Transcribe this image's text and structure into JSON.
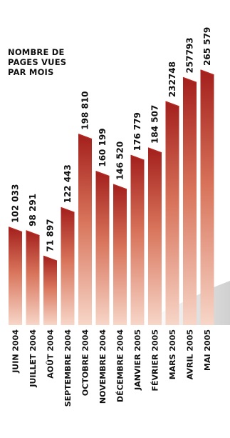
{
  "chart_data": {
    "type": "bar",
    "title": "NOMBRE DE\nPAGES VUES\nPAR MOIS",
    "xlabel": "",
    "ylabel": "",
    "ylim": [
      0,
      265579
    ],
    "grid": false,
    "categories": [
      "JUIN 2004",
      "JUILLET 2004",
      "AOÛT 2004",
      "SEPTEMBRE 2004",
      "OCTOBRE 2004",
      "NOVEMBRE 2004",
      "DÉCEMBRE 2004",
      "JANVIER 2005",
      "FÉVRIER 2005",
      "MARS 2005",
      "AVRIL 2005",
      "MAI 2005"
    ],
    "values": [
      102033,
      98291,
      71897,
      122443,
      198810,
      160199,
      146520,
      176779,
      184507,
      232748,
      257793,
      265579
    ],
    "value_labels": [
      "102 033",
      "98 291",
      "71 897",
      "122 443",
      "198 810",
      "160 199",
      "146 520",
      "176 779",
      "184 507",
      "232748",
      "257793",
      "265 579"
    ],
    "colors": {
      "bar_top": "#a31f1c",
      "bar_mid": "#d8735a",
      "bar_bottom": "#f7d6c8",
      "bar_cap": "#b52a22",
      "floor": "#d9d9d9",
      "text": "#111111"
    }
  }
}
